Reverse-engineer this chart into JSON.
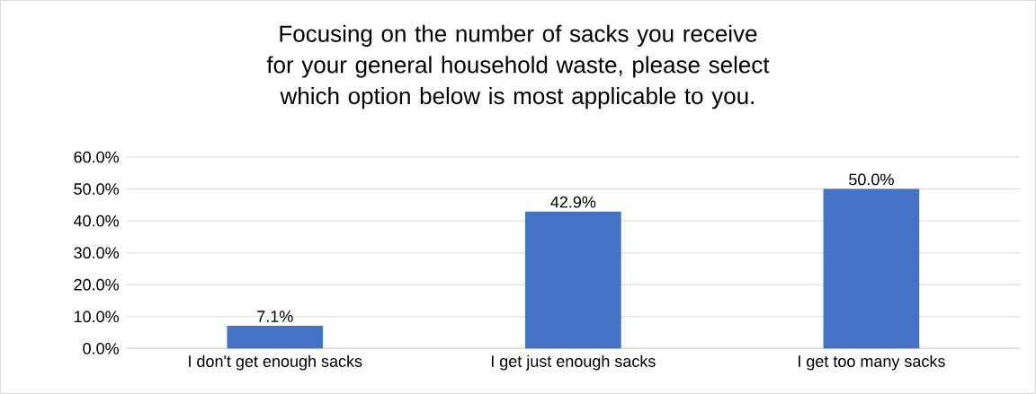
{
  "chart_data": {
    "type": "bar",
    "title": "Focusing on the number of sacks you receive for your general household waste, please select which option below is most applicable to you.",
    "categories": [
      "I don't get enough sacks",
      "I get just enough sacks",
      "I get too many sacks"
    ],
    "values": [
      7.1,
      42.9,
      50.0
    ],
    "value_labels": [
      "7.1%",
      "42.9%",
      "50.0%"
    ],
    "color": "#4472c4",
    "ylim": [
      0,
      60
    ],
    "yticks": [
      {
        "value": 0,
        "label": "0.0%"
      },
      {
        "value": 10,
        "label": "10.0%"
      },
      {
        "value": 20,
        "label": "20.0%"
      },
      {
        "value": 30,
        "label": "30.0%"
      },
      {
        "value": 40,
        "label": "40.0%"
      },
      {
        "value": 50,
        "label": "50.0%"
      },
      {
        "value": 60,
        "label": "60.0%"
      }
    ],
    "grid": "y"
  }
}
